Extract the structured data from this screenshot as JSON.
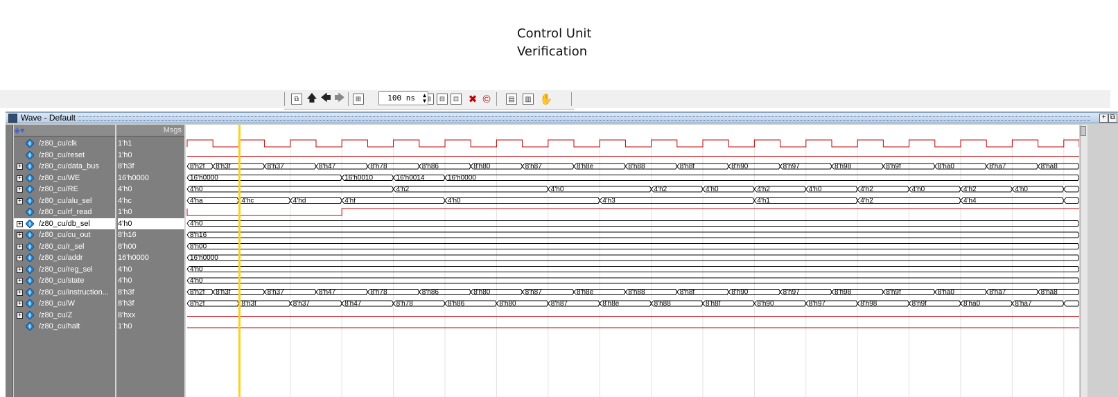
{
  "title": {
    "line1": "Control Unit",
    "line2": "Verification"
  },
  "toolbar": {
    "zoom_value": "100 ns",
    "buttons": [
      "restart-icon",
      "up-arrow-icon",
      "back-arrow-icon",
      "forward-arrow-icon",
      "find-icon",
      "zoom-in-icon",
      "zoom-out-icon",
      "zoom-full-icon",
      "delete-icon",
      "stop-icon",
      "wave-icon-1",
      "wave-icon-2",
      "hand-icon"
    ]
  },
  "window": {
    "title": "Wave - Default",
    "msgs_header": "Msgs"
  },
  "colors": {
    "wave": "#c00000",
    "cursor": "#ffd21a",
    "pane": "#7f7f7f",
    "diamond": "#2c8fd6"
  },
  "signals": [
    {
      "name": "/z80_cu/clk",
      "value": "1'h1",
      "expandable": false,
      "kind": "clk",
      "wave": []
    },
    {
      "name": "/z80_cu/reset",
      "value": "1'h0",
      "expandable": false,
      "kind": "low",
      "wave": []
    },
    {
      "name": "/z80_cu/data_bus",
      "value": "8'h3f",
      "expandable": true,
      "kind": "bus",
      "wave": [
        [
          "8'h2f",
          0
        ],
        [
          "8'h3f",
          1
        ],
        [
          "8'h37",
          3
        ],
        [
          "8'h47",
          5
        ],
        [
          "8'h78",
          7
        ],
        [
          "8'h86",
          9
        ],
        [
          "8'h80",
          11
        ],
        [
          "8'h87",
          13
        ],
        [
          "8'h8e",
          15
        ],
        [
          "8'h88",
          17
        ],
        [
          "8'h8f",
          19
        ],
        [
          "8'h90",
          21
        ],
        [
          "8'h97",
          23
        ],
        [
          "8'h98",
          25
        ],
        [
          "8'h9f",
          27
        ],
        [
          "8'ha0",
          29
        ],
        [
          "8'ha7",
          31
        ],
        [
          "8'ha8",
          33
        ]
      ]
    },
    {
      "name": "/z80_cu/WE",
      "value": "16'h0000",
      "expandable": true,
      "kind": "bus",
      "wave": [
        [
          "16'h0000",
          0
        ],
        [
          "16'h0010",
          6
        ],
        [
          "16'h0014",
          8
        ],
        [
          "16'h0000",
          10
        ]
      ]
    },
    {
      "name": "/z80_cu/RE",
      "value": "4'h0",
      "expandable": true,
      "kind": "bus",
      "wave": [
        [
          "4'h0",
          0
        ],
        [
          "4'h2",
          8
        ],
        [
          "4'h0",
          14
        ],
        [
          "4'h2",
          18
        ],
        [
          "4'h0",
          20
        ],
        [
          "4'h2",
          22
        ],
        [
          "4'h0",
          24
        ],
        [
          "4'h2",
          26
        ],
        [
          "4'h0",
          28
        ],
        [
          "4'h2",
          30
        ],
        [
          "4'h0",
          32
        ],
        [
          "",
          34
        ]
      ]
    },
    {
      "name": "/z80_cu/alu_sel",
      "value": "4'hc",
      "expandable": true,
      "kind": "bus",
      "wave": [
        [
          "4'ha",
          0
        ],
        [
          "4'hc",
          2
        ],
        [
          "4'hd",
          4
        ],
        [
          "4'hf",
          6
        ],
        [
          "4'h0",
          10
        ],
        [
          "4'h3",
          16
        ],
        [
          "4'h1",
          22
        ],
        [
          "4'h2",
          26
        ],
        [
          "4'h4",
          30
        ],
        [
          "",
          34
        ]
      ]
    },
    {
      "name": "/z80_cu/rf_read",
      "value": "1'h0",
      "expandable": false,
      "kind": "rf",
      "wave": []
    },
    {
      "name": "/z80_cu/db_sel",
      "value": "4'h0",
      "expandable": true,
      "kind": "bus",
      "selected": true,
      "wave": [
        [
          "4'h0",
          0
        ]
      ]
    },
    {
      "name": "/z80_cu/cu_out",
      "value": "8'h16",
      "expandable": true,
      "kind": "bus",
      "wave": [
        [
          "8'h16",
          0
        ]
      ]
    },
    {
      "name": "/z80_cu/r_sel",
      "value": "8'h00",
      "expandable": true,
      "kind": "bus",
      "wave": [
        [
          "8'h00",
          0
        ]
      ]
    },
    {
      "name": "/z80_cu/addr",
      "value": "16'h0000",
      "expandable": true,
      "kind": "bus",
      "wave": [
        [
          "16'h0000",
          0
        ]
      ]
    },
    {
      "name": "/z80_cu/reg_sel",
      "value": "4'h0",
      "expandable": true,
      "kind": "bus",
      "wave": [
        [
          "4'h0",
          0
        ]
      ]
    },
    {
      "name": "/z80_cu/state",
      "value": "4'h0",
      "expandable": true,
      "kind": "bus",
      "wave": [
        [
          "4'h0",
          0
        ]
      ]
    },
    {
      "name": "/z80_cu/instruction...",
      "value": "8'h3f",
      "expandable": true,
      "kind": "bus",
      "wave": [
        [
          "8'h2f",
          0
        ],
        [
          "8'h3f",
          1
        ],
        [
          "8'h37",
          3
        ],
        [
          "8'h47",
          5
        ],
        [
          "8'h78",
          7
        ],
        [
          "8'h86",
          9
        ],
        [
          "8'h80",
          11
        ],
        [
          "8'h87",
          13
        ],
        [
          "8'h8e",
          15
        ],
        [
          "8'h88",
          17
        ],
        [
          "8'h8f",
          19
        ],
        [
          "8'h90",
          21
        ],
        [
          "8'h97",
          23
        ],
        [
          "8'h98",
          25
        ],
        [
          "8'h9f",
          27
        ],
        [
          "8'ha0",
          29
        ],
        [
          "8'ha7",
          31
        ],
        [
          "8'ha8",
          33
        ]
      ]
    },
    {
      "name": "/z80_cu/W",
      "value": "8'h3f",
      "expandable": true,
      "kind": "bus",
      "wave": [
        [
          "8'h2f",
          0
        ],
        [
          "8'h3f",
          2
        ],
        [
          "8'h37",
          4
        ],
        [
          "8'h47",
          6
        ],
        [
          "8'h78",
          8
        ],
        [
          "8'h86",
          10
        ],
        [
          "8'h80",
          12
        ],
        [
          "8'h87",
          14
        ],
        [
          "8'h8e",
          16
        ],
        [
          "8'h88",
          18
        ],
        [
          "8'h8f",
          20
        ],
        [
          "8'h90",
          22
        ],
        [
          "8'h97",
          24
        ],
        [
          "8'h98",
          26
        ],
        [
          "8'h9f",
          28
        ],
        [
          "8'ha0",
          30
        ],
        [
          "8'ha7",
          32
        ],
        [
          "",
          34
        ]
      ]
    },
    {
      "name": "/z80_cu/Z",
      "value": "8'hxx",
      "expandable": true,
      "kind": "low",
      "wave": []
    },
    {
      "name": "/z80_cu/halt",
      "value": "1'h0",
      "expandable": false,
      "kind": "low",
      "wave": []
    }
  ]
}
